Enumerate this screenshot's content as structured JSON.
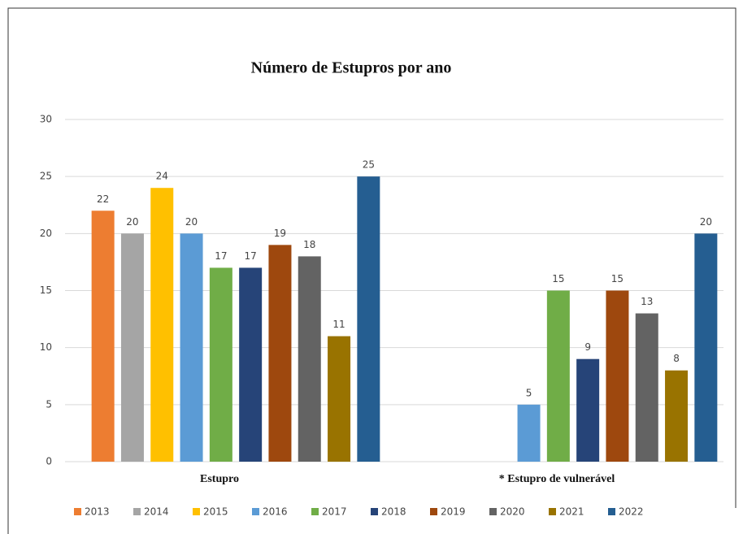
{
  "chart_data": {
    "type": "bar",
    "title": "Número de Estupros por ano",
    "categories": [
      "Estupro",
      "* Estupro de vulnerável"
    ],
    "series": [
      {
        "name": "2013",
        "color": "#ed7d31",
        "values": [
          22,
          null
        ]
      },
      {
        "name": "2014",
        "color": "#a5a5a5",
        "values": [
          20,
          null
        ]
      },
      {
        "name": "2015",
        "color": "#ffc000",
        "values": [
          24,
          null
        ]
      },
      {
        "name": "2016",
        "color": "#5b9bd5",
        "values": [
          20,
          5
        ]
      },
      {
        "name": "2017",
        "color": "#70ad47",
        "values": [
          17,
          15
        ]
      },
      {
        "name": "2018",
        "color": "#264478",
        "values": [
          17,
          9
        ]
      },
      {
        "name": "2019",
        "color": "#9e480e",
        "values": [
          19,
          15
        ]
      },
      {
        "name": "2020",
        "color": "#636363",
        "values": [
          18,
          13
        ]
      },
      {
        "name": "2021",
        "color": "#997300",
        "values": [
          11,
          8
        ]
      },
      {
        "name": "2022",
        "color": "#255e91",
        "values": [
          25,
          20
        ]
      }
    ],
    "ylim": [
      0,
      30
    ],
    "yticks": [
      0,
      5,
      10,
      15,
      20,
      25,
      30
    ],
    "grid": true,
    "legend": "bottom"
  }
}
